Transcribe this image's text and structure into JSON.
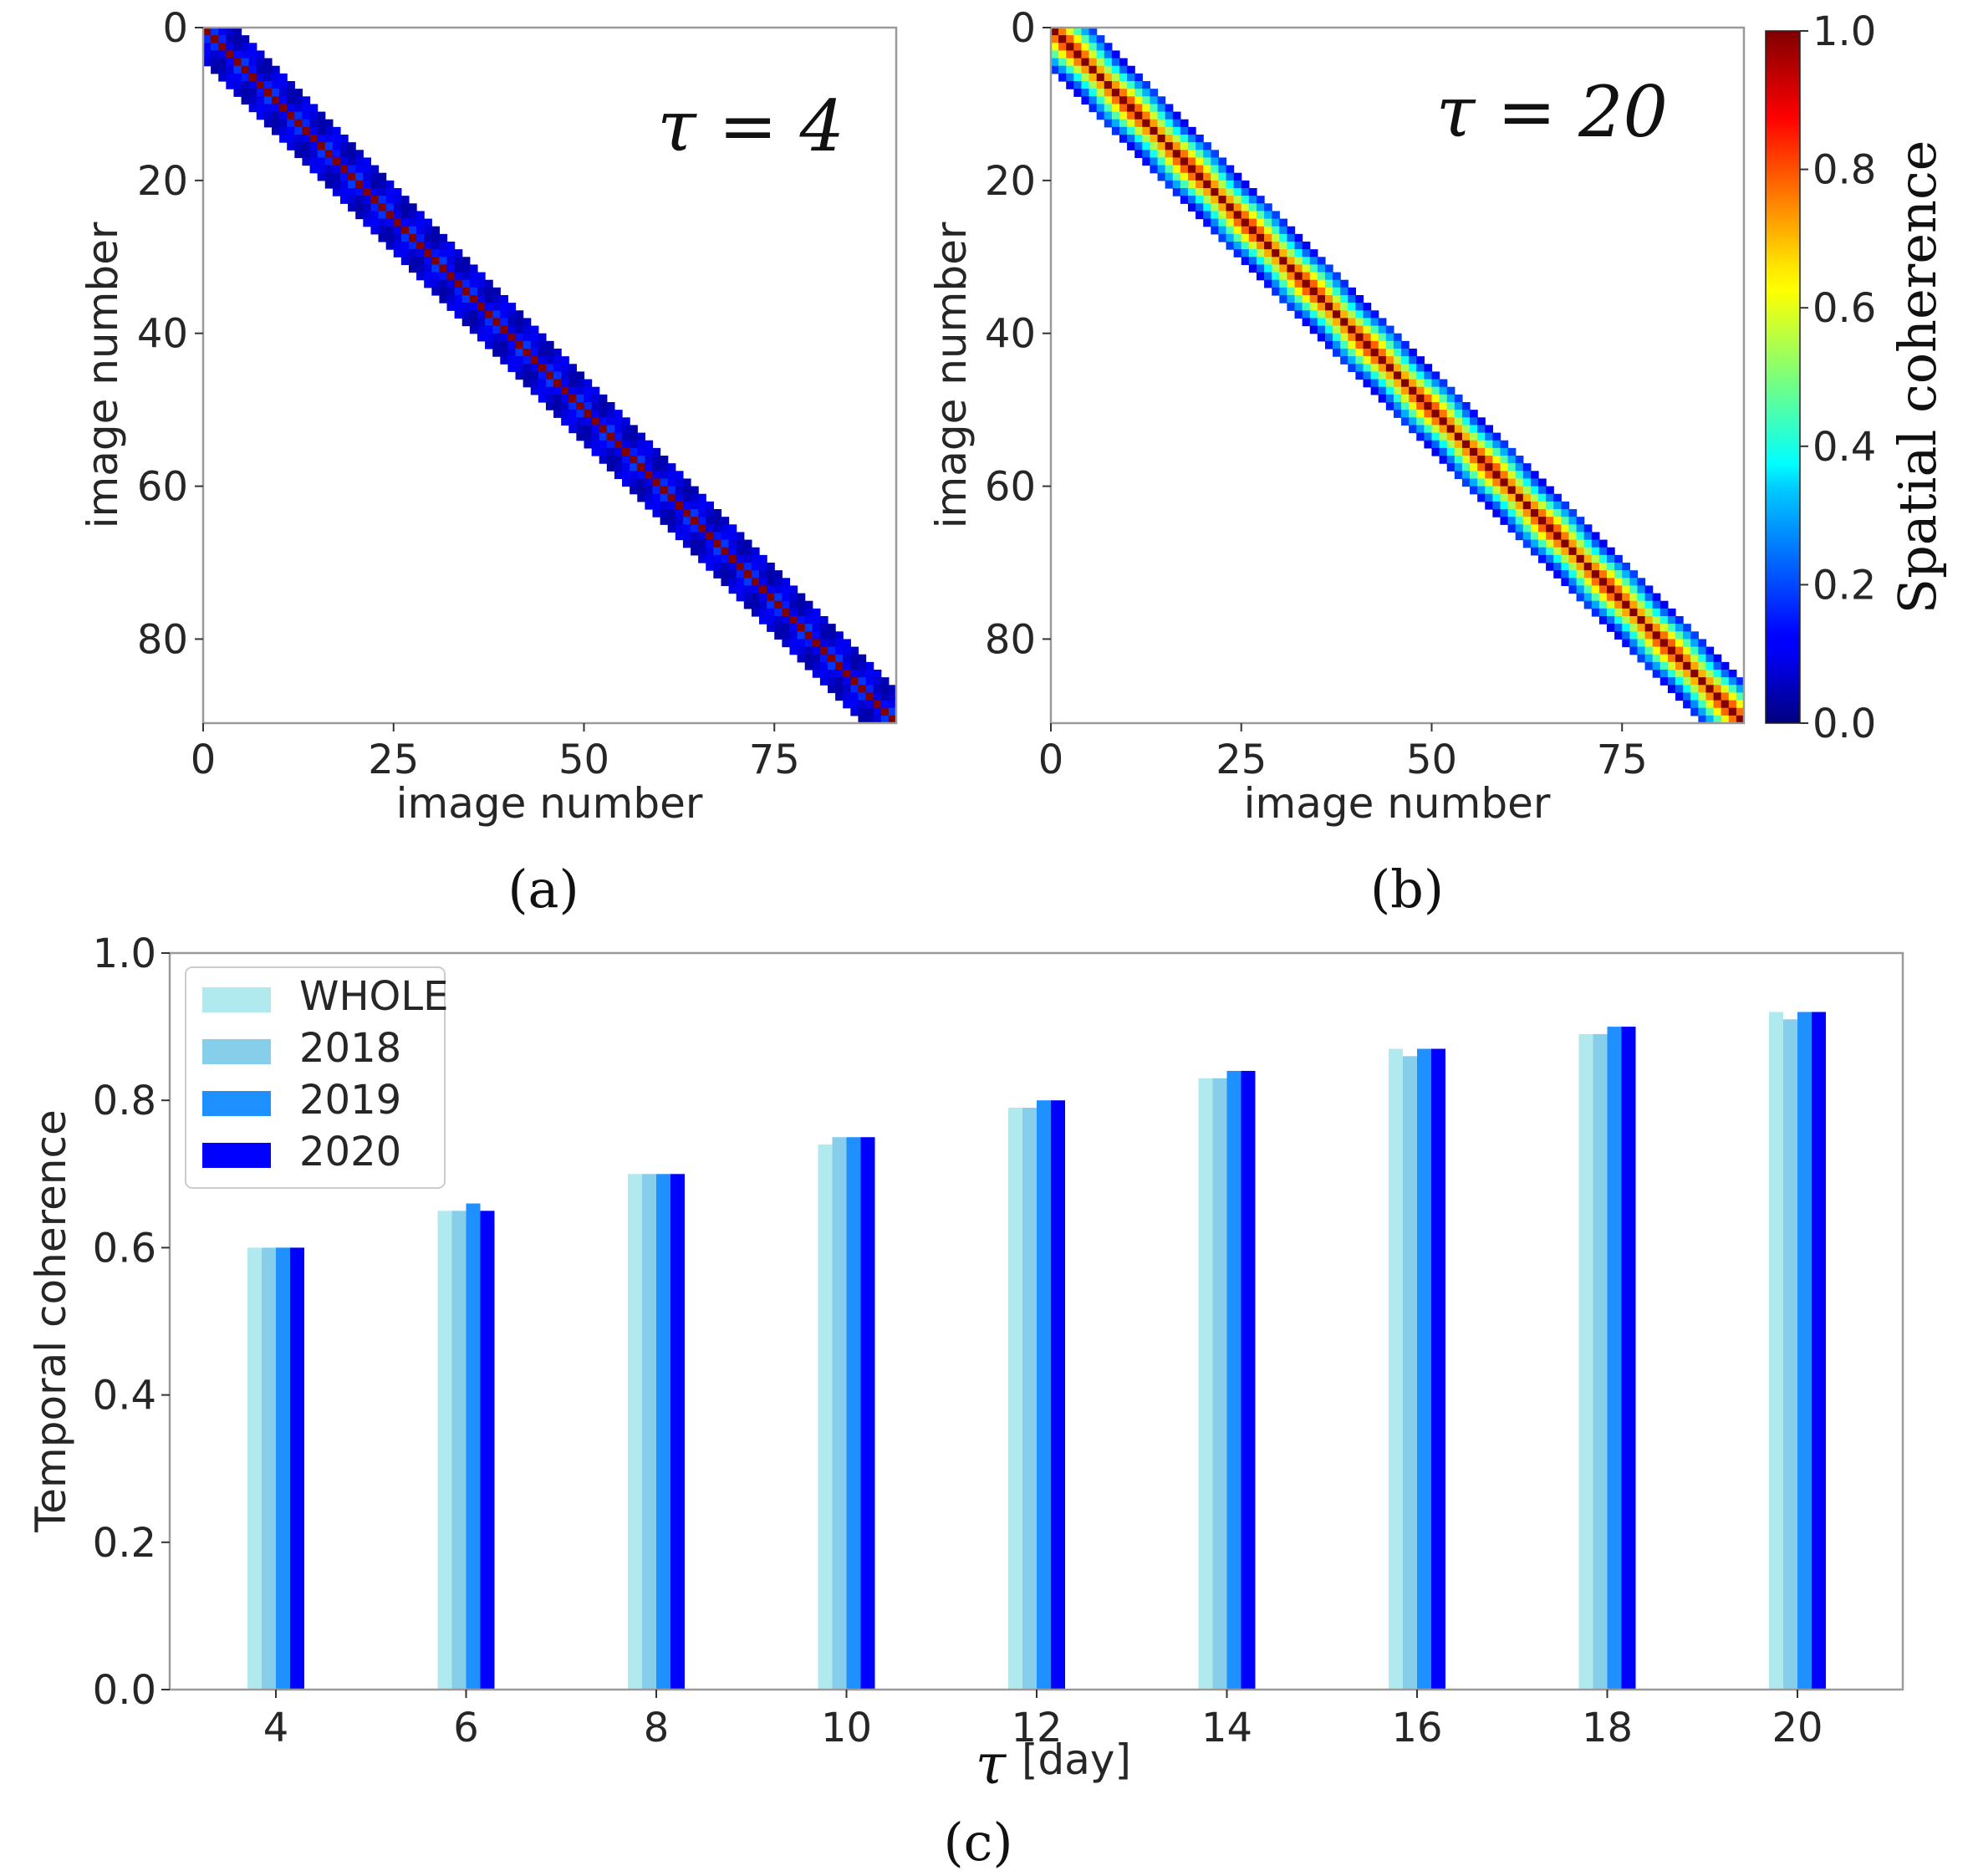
{
  "chart_data": [
    {
      "type": "heatmap",
      "panel": "(a)",
      "annotation": "τ = 4",
      "xlabel": "image number",
      "ylabel": "image number",
      "xticks": [
        0,
        25,
        50,
        75
      ],
      "yticks": [
        0,
        20,
        40,
        60,
        80
      ],
      "size": 91,
      "tau": 4,
      "band_halfwidth": 4,
      "diagonal_value": 1.0,
      "offdiag_value": 0.08,
      "xlim": [
        0,
        91
      ],
      "ylim": [
        91,
        0
      ]
    },
    {
      "type": "heatmap",
      "panel": "(b)",
      "annotation": "τ = 20",
      "xlabel": "image number",
      "ylabel": "image number",
      "xticks": [
        0,
        25,
        50,
        75
      ],
      "yticks": [
        0,
        20,
        40,
        60,
        80
      ],
      "size": 91,
      "tau": 20,
      "band_halfwidth": 5,
      "diagonal_value": 1.0,
      "offdiag_value": 0.4,
      "xlim": [
        0,
        91
      ],
      "ylim": [
        91,
        0
      ],
      "colorbar": {
        "label": "Spatial coherence",
        "min": 0.0,
        "max": 1.0,
        "ticks": [
          "0.0",
          "0.2",
          "0.4",
          "0.6",
          "0.8",
          "1.0"
        ]
      }
    },
    {
      "type": "bar",
      "panel": "(c)",
      "xlabel_symbol": "τ",
      "xlabel": "[day]",
      "ylabel": "Temporal coherence",
      "ylim": [
        0,
        1.0
      ],
      "yticks": [
        "0.0",
        "0.2",
        "0.4",
        "0.6",
        "0.8",
        "1.0"
      ],
      "categories": [
        "4",
        "6",
        "8",
        "10",
        "12",
        "14",
        "16",
        "18",
        "20"
      ],
      "series": [
        {
          "name": "WHOLE",
          "color": "#b0eaee",
          "values": [
            0.6,
            0.65,
            0.7,
            0.74,
            0.79,
            0.83,
            0.87,
            0.89,
            0.92
          ]
        },
        {
          "name": "2018",
          "color": "#87ceeb",
          "values": [
            0.6,
            0.65,
            0.7,
            0.75,
            0.79,
            0.83,
            0.86,
            0.89,
            0.91
          ]
        },
        {
          "name": "2019",
          "color": "#1e90ff",
          "values": [
            0.6,
            0.66,
            0.7,
            0.75,
            0.8,
            0.84,
            0.87,
            0.9,
            0.92
          ]
        },
        {
          "name": "2020",
          "color": "#0000ff",
          "values": [
            0.6,
            0.65,
            0.7,
            0.75,
            0.8,
            0.84,
            0.87,
            0.9,
            0.92
          ]
        }
      ]
    }
  ]
}
